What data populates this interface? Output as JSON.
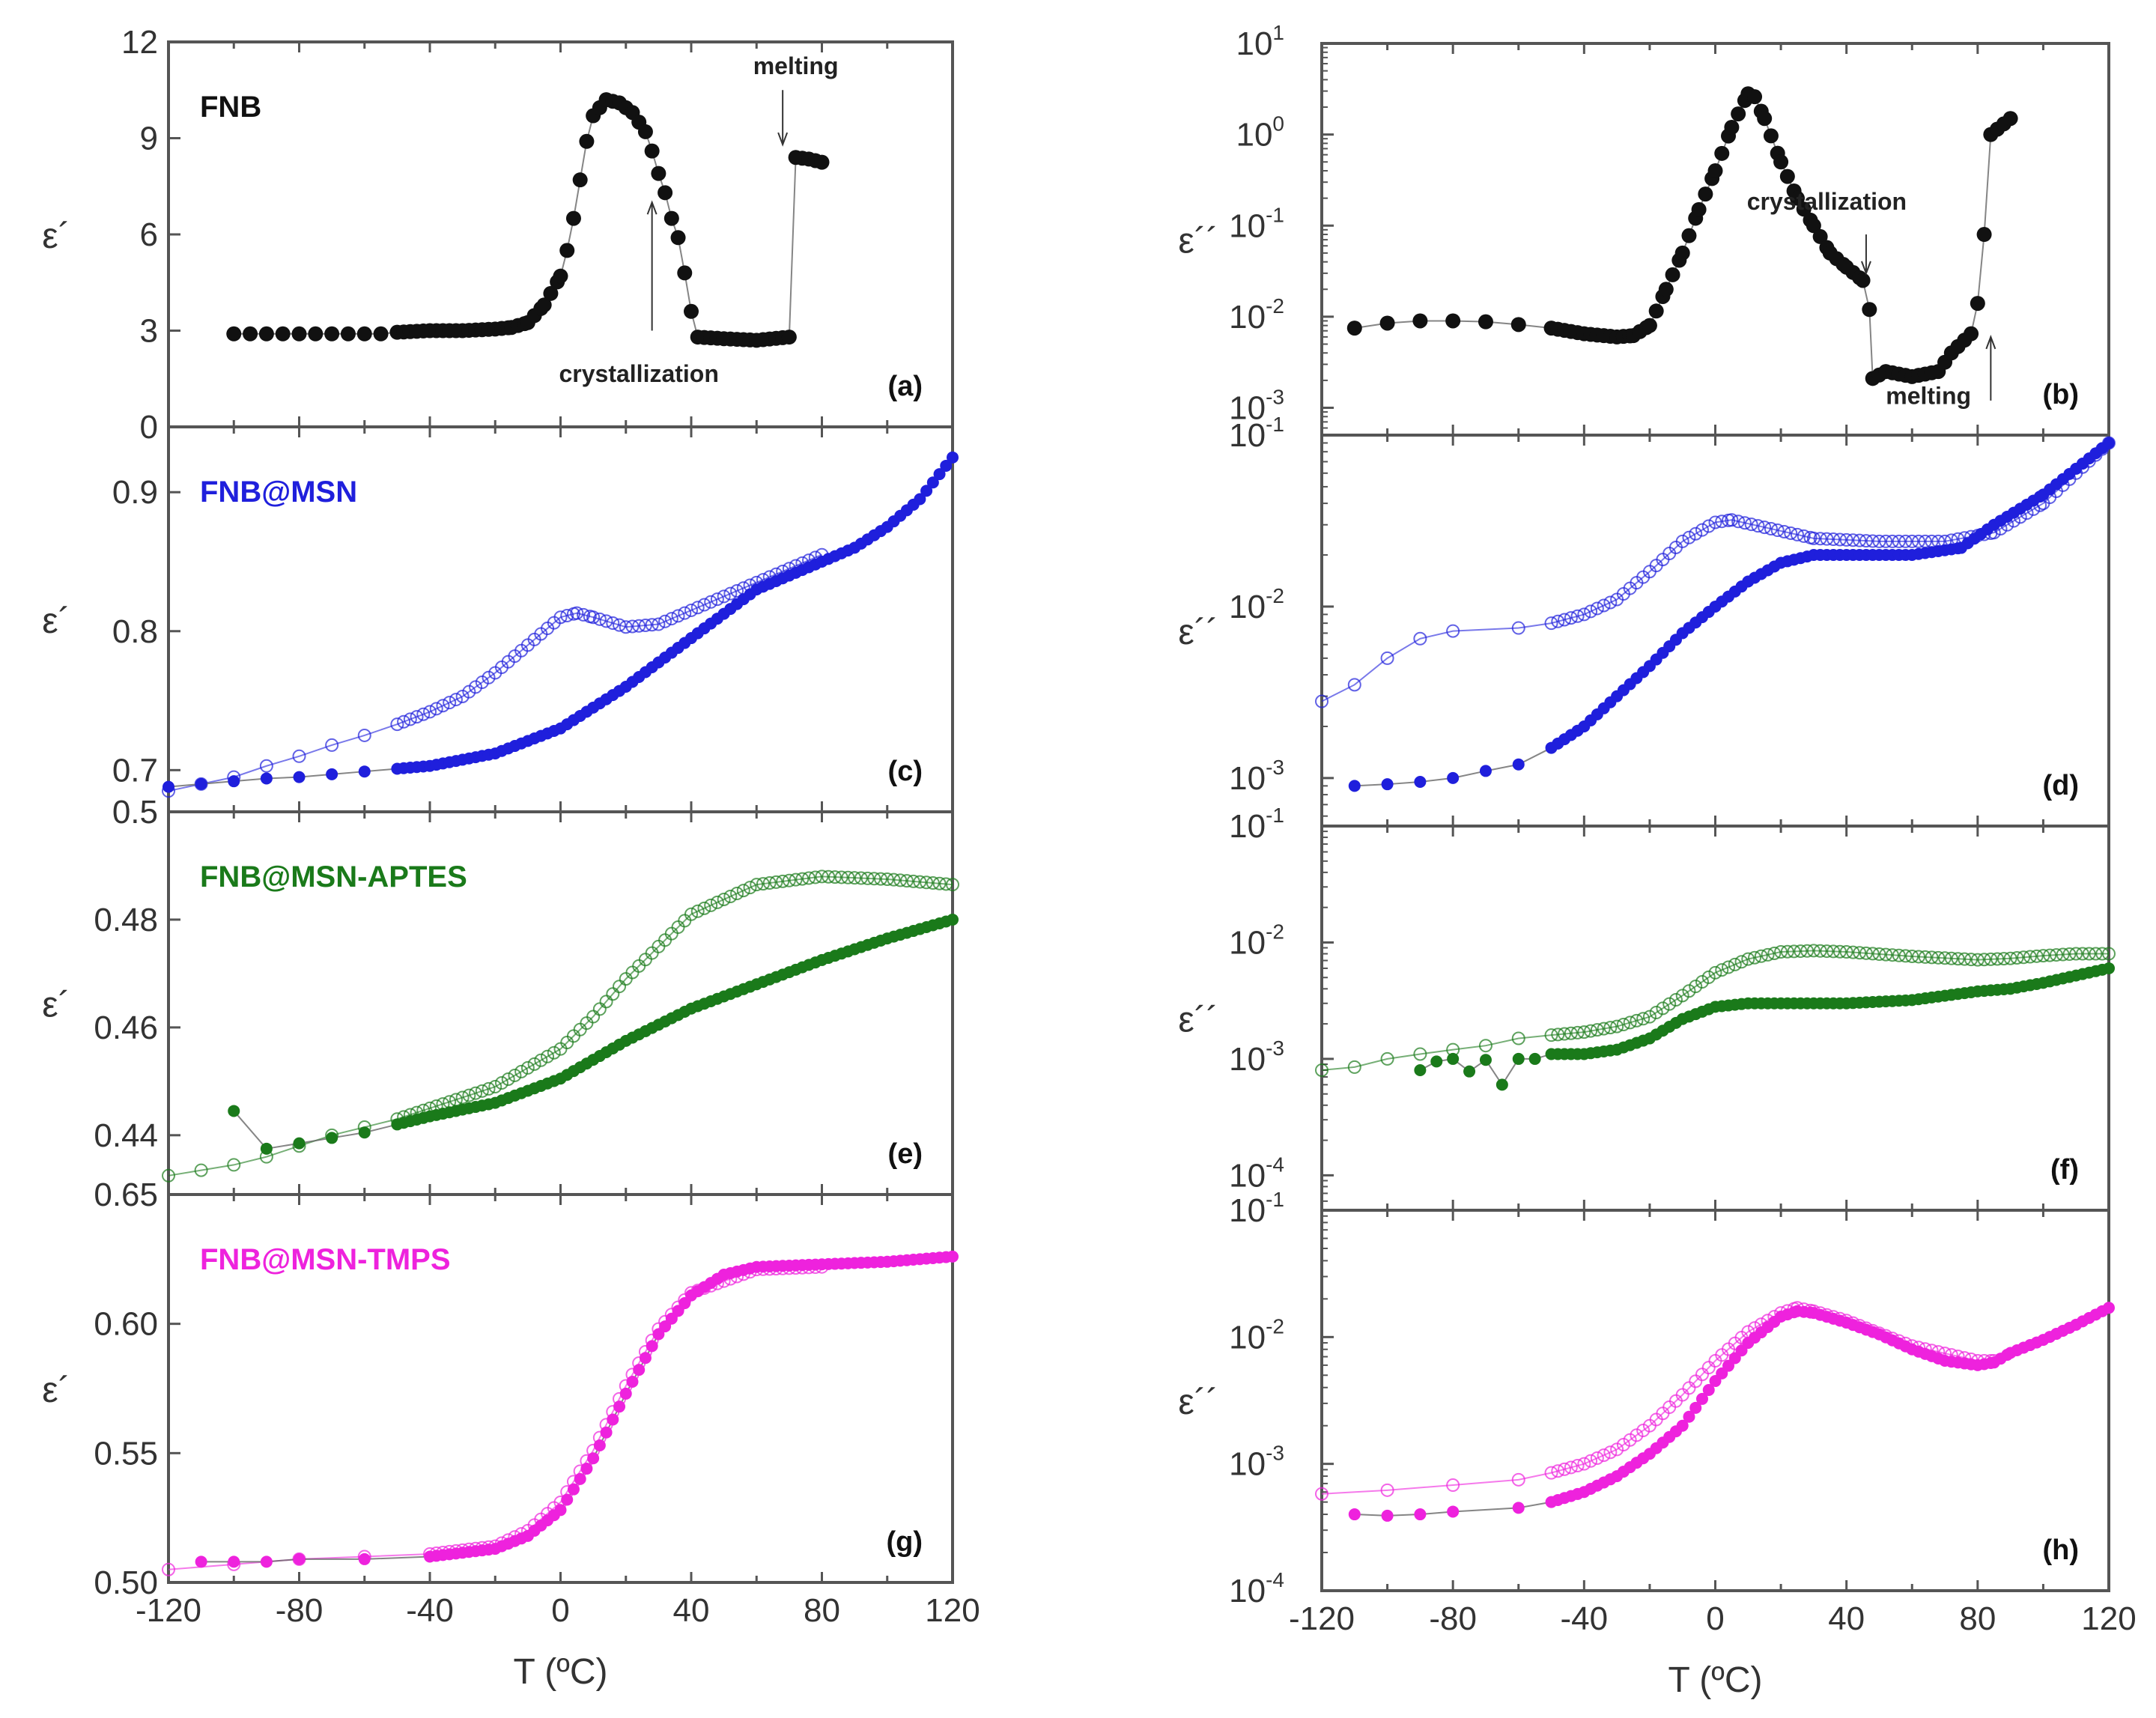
{
  "chart_data": [
    {
      "id": "a",
      "type": "scatter",
      "panel_label": "(a)",
      "sample": "FNB",
      "sample_color": "#111111",
      "ylabel": "ε´",
      "yscale": "linear",
      "ylim": [
        0,
        12
      ],
      "xlim": [
        -120,
        120
      ],
      "yticks": [
        {
          "v": 0,
          "t": "0"
        },
        {
          "v": 3,
          "t": "3"
        },
        {
          "v": 6,
          "t": "6"
        },
        {
          "v": 9,
          "t": "9"
        },
        {
          "v": 12,
          "t": "12"
        }
      ],
      "color": "#111111",
      "annotations": [
        {
          "text": "crystallization",
          "arrow_x": 28,
          "arrow_from": 3.0,
          "arrow_to": 7.0,
          "text_x": 24,
          "text_y": 1.4
        },
        {
          "text": "melting",
          "arrow_x": 68,
          "arrow_from": 10.5,
          "arrow_to": 8.8,
          "text_x": 72,
          "text_y": 11.0
        }
      ],
      "series": [
        {
          "name": "filled",
          "marker": "filled",
          "x": [
            -100,
            -95,
            -90,
            -85,
            -80,
            -75,
            -70,
            -65,
            -60,
            -55,
            -50,
            -40,
            -30,
            -20,
            -15,
            -10,
            -5,
            0,
            2,
            4,
            6,
            8,
            10,
            14,
            18,
            22,
            26,
            28,
            30,
            32,
            34,
            36,
            38,
            40,
            42,
            50,
            60,
            70,
            72,
            76,
            80
          ],
          "y": [
            2.9,
            2.9,
            2.9,
            2.9,
            2.9,
            2.9,
            2.9,
            2.9,
            2.9,
            2.9,
            2.95,
            3.0,
            3.0,
            3.05,
            3.1,
            3.25,
            3.8,
            4.7,
            5.5,
            6.5,
            7.7,
            8.9,
            9.7,
            10.2,
            10.1,
            9.8,
            9.2,
            8.6,
            7.9,
            7.3,
            6.5,
            5.9,
            4.8,
            3.6,
            2.8,
            2.75,
            2.7,
            2.8,
            8.4,
            8.35,
            8.25
          ]
        }
      ]
    },
    {
      "id": "b",
      "type": "scatter",
      "panel_label": "(b)",
      "ylabel": "ε´´",
      "yscale": "log",
      "ylim_log10": [
        -3.3,
        1
      ],
      "xlim": [
        -120,
        120
      ],
      "yticks": [
        {
          "v": -3,
          "t": "10",
          "e": "-3"
        },
        {
          "v": -2,
          "t": "10",
          "e": "-2"
        },
        {
          "v": -1,
          "t": "10",
          "e": "-1"
        },
        {
          "v": 0,
          "t": "10",
          "e": "0"
        },
        {
          "v": 1,
          "t": "10",
          "e": "1"
        }
      ],
      "color": "#111111",
      "annotations": [
        {
          "text": "crystallization",
          "arrow_x": 46,
          "arrow_from": 0.08,
          "arrow_to": 0.03,
          "text_x": 34,
          "text_y": 0.15
        },
        {
          "text": "melting",
          "arrow_x": 84,
          "arrow_from": 0.0012,
          "arrow_to": 0.006,
          "text_x": 65,
          "text_y": 0.0011
        }
      ],
      "series": [
        {
          "name": "filled",
          "marker": "filled",
          "x": [
            -110,
            -100,
            -90,
            -80,
            -70,
            -60,
            -50,
            -40,
            -30,
            -25,
            -20,
            -15,
            -10,
            -5,
            0,
            5,
            10,
            12,
            15,
            20,
            25,
            30,
            35,
            40,
            45,
            47,
            48,
            52,
            60,
            68,
            72,
            78,
            80,
            82,
            84,
            90
          ],
          "y": [
            0.0075,
            0.0085,
            0.009,
            0.009,
            0.0088,
            0.0082,
            0.0075,
            0.0065,
            0.006,
            0.0062,
            0.008,
            0.02,
            0.05,
            0.15,
            0.4,
            1.2,
            2.8,
            2.6,
            1.5,
            0.5,
            0.2,
            0.1,
            0.05,
            0.035,
            0.025,
            0.012,
            0.0021,
            0.0025,
            0.0022,
            0.0025,
            0.004,
            0.0065,
            0.014,
            0.08,
            1.0,
            1.5
          ]
        }
      ]
    },
    {
      "id": "c",
      "type": "scatter",
      "panel_label": "(c)",
      "sample": "FNB@MSN",
      "sample_color": "#1f1fdc",
      "ylabel": "ε´",
      "yscale": "linear",
      "ylim": [
        0.67,
        0.947
      ],
      "xlim": [
        -120,
        120
      ],
      "yticks": [
        {
          "v": 0.7,
          "t": "0.7"
        },
        {
          "v": 0.8,
          "t": "0.8"
        },
        {
          "v": 0.9,
          "t": "0.9"
        }
      ],
      "color": "#1f1fdc",
      "series": [
        {
          "name": "filled",
          "marker": "filled",
          "x": [
            -120,
            -110,
            -100,
            -90,
            -80,
            -70,
            -60,
            -50,
            -40,
            -20,
            0,
            20,
            40,
            60,
            80,
            90,
            100,
            110,
            120
          ],
          "y": [
            0.688,
            0.69,
            0.692,
            0.694,
            0.695,
            0.697,
            0.699,
            0.701,
            0.703,
            0.712,
            0.73,
            0.76,
            0.795,
            0.83,
            0.85,
            0.86,
            0.875,
            0.895,
            0.925
          ]
        },
        {
          "name": "open",
          "marker": "open",
          "x": [
            -120,
            -110,
            -100,
            -90,
            -80,
            -70,
            -60,
            -50,
            -40,
            -30,
            -20,
            -10,
            0,
            5,
            10,
            20,
            30,
            40,
            60,
            80
          ],
          "y": [
            0.685,
            0.69,
            0.695,
            0.703,
            0.71,
            0.718,
            0.725,
            0.733,
            0.742,
            0.753,
            0.77,
            0.79,
            0.81,
            0.813,
            0.81,
            0.803,
            0.805,
            0.815,
            0.835,
            0.855
          ]
        }
      ]
    },
    {
      "id": "d",
      "type": "scatter",
      "panel_label": "(d)",
      "ylabel": "ε´´",
      "yscale": "log",
      "ylim_log10": [
        -3.28,
        -1
      ],
      "xlim": [
        -120,
        120
      ],
      "yticks": [
        {
          "v": -3,
          "t": "10",
          "e": "-3"
        },
        {
          "v": -2,
          "t": "10",
          "e": "-2"
        },
        {
          "v": -1,
          "t": "10",
          "e": "-1"
        }
      ],
      "color": "#1f1fdc",
      "series": [
        {
          "name": "filled",
          "marker": "filled",
          "x": [
            -110,
            -100,
            -90,
            -80,
            -70,
            -60,
            -50,
            -40,
            -30,
            -20,
            -10,
            0,
            10,
            20,
            30,
            40,
            60,
            75,
            85,
            100,
            120
          ],
          "y": [
            0.0009,
            0.00092,
            0.00095,
            0.001,
            0.0011,
            0.0012,
            0.0015,
            0.002,
            0.003,
            0.0045,
            0.007,
            0.01,
            0.014,
            0.018,
            0.02,
            0.02,
            0.02,
            0.022,
            0.03,
            0.045,
            0.09
          ]
        },
        {
          "name": "open",
          "marker": "open",
          "x": [
            -120,
            -110,
            -100,
            -90,
            -80,
            -60,
            -50,
            -40,
            -30,
            -20,
            -10,
            0,
            5,
            15,
            30,
            50,
            70,
            85,
            100,
            120
          ],
          "y": [
            0.0028,
            0.0035,
            0.005,
            0.0065,
            0.0072,
            0.0075,
            0.008,
            0.009,
            0.011,
            0.016,
            0.024,
            0.031,
            0.032,
            0.029,
            0.025,
            0.024,
            0.024,
            0.027,
            0.04,
            0.09
          ]
        }
      ]
    },
    {
      "id": "e",
      "type": "scatter",
      "panel_label": "(e)",
      "sample": "FNB@MSN-APTES",
      "sample_color": "#1a7a1a",
      "ylabel": "ε´",
      "yscale": "linear",
      "ylim": [
        0.429,
        0.5
      ],
      "xlim": [
        -120,
        120
      ],
      "yticks": [
        {
          "v": 0.44,
          "t": "0.44"
        },
        {
          "v": 0.46,
          "t": "0.46"
        },
        {
          "v": 0.48,
          "t": "0.48"
        },
        {
          "v": 0.5,
          "t": "0.5"
        }
      ],
      "color": "#1a7a1a",
      "series": [
        {
          "name": "filled",
          "marker": "filled",
          "x": [
            -100,
            -90,
            -80,
            -70,
            -60,
            -50,
            -40,
            -20,
            0,
            20,
            40,
            60,
            80,
            100,
            120
          ],
          "y": [
            0.4445,
            0.4375,
            0.4385,
            0.4395,
            0.4405,
            0.442,
            0.4435,
            0.446,
            0.4505,
            0.4575,
            0.4635,
            0.468,
            0.4725,
            0.4765,
            0.48
          ]
        },
        {
          "name": "open",
          "marker": "open",
          "x": [
            -120,
            -110,
            -100,
            -90,
            -80,
            -70,
            -60,
            -50,
            -40,
            -20,
            0,
            10,
            20,
            40,
            60,
            80,
            100,
            120
          ],
          "y": [
            0.4325,
            0.4335,
            0.4345,
            0.436,
            0.438,
            0.44,
            0.4415,
            0.443,
            0.445,
            0.449,
            0.456,
            0.462,
            0.469,
            0.481,
            0.4865,
            0.488,
            0.4875,
            0.4865
          ]
        }
      ]
    },
    {
      "id": "f",
      "type": "scatter",
      "panel_label": "(f)",
      "ylabel": "ε´´",
      "yscale": "log",
      "ylim_log10": [
        -4.3,
        -1
      ],
      "xlim": [
        -120,
        120
      ],
      "yticks": [
        {
          "v": -4,
          "t": "10",
          "e": "-4"
        },
        {
          "v": -3,
          "t": "10",
          "e": "-3"
        },
        {
          "v": -2,
          "t": "10",
          "e": "-2"
        },
        {
          "v": -1,
          "t": "10",
          "e": "-1"
        }
      ],
      "color": "#1a7a1a",
      "series": [
        {
          "name": "filled",
          "marker": "filled",
          "x": [
            -90,
            -85,
            -80,
            -75,
            -70,
            -65,
            -60,
            -55,
            -50,
            -40,
            -30,
            -20,
            -10,
            0,
            10,
            20,
            40,
            60,
            80,
            90,
            100,
            110,
            120
          ],
          "y": [
            0.0008,
            0.00095,
            0.001,
            0.00078,
            0.00098,
            0.0006,
            0.001,
            0.001,
            0.0011,
            0.0011,
            0.0012,
            0.0015,
            0.0022,
            0.0028,
            0.003,
            0.003,
            0.003,
            0.0032,
            0.0038,
            0.004,
            0.0045,
            0.0052,
            0.006
          ]
        },
        {
          "name": "open",
          "marker": "open",
          "x": [
            -120,
            -110,
            -100,
            -90,
            -80,
            -70,
            -60,
            -50,
            -40,
            -30,
            -20,
            -10,
            0,
            10,
            20,
            30,
            40,
            60,
            80,
            90,
            100,
            110,
            120
          ],
          "y": [
            0.0008,
            0.00085,
            0.001,
            0.0011,
            0.0012,
            0.0013,
            0.0015,
            0.0016,
            0.0017,
            0.0019,
            0.0023,
            0.0035,
            0.0055,
            0.0072,
            0.0083,
            0.0085,
            0.0083,
            0.0076,
            0.0071,
            0.0073,
            0.0077,
            0.008,
            0.008
          ]
        }
      ]
    },
    {
      "id": "g",
      "type": "scatter",
      "panel_label": "(g)",
      "sample": "FNB@MSN-TMPS",
      "sample_color": "#ee22dd",
      "ylabel": "ε´",
      "yscale": "linear",
      "ylim": [
        0.5,
        0.65
      ],
      "xlim": [
        -120,
        120
      ],
      "yticks": [
        {
          "v": 0.5,
          "t": "0.50"
        },
        {
          "v": 0.55,
          "t": "0.55"
        },
        {
          "v": 0.6,
          "t": "0.60"
        },
        {
          "v": 0.65,
          "t": "0.65"
        }
      ],
      "xticks": [
        "-120",
        "-80",
        "-40",
        "0",
        "40",
        "80",
        "120"
      ],
      "xlabel": "T (ºC)",
      "color": "#ee22dd",
      "series": [
        {
          "name": "filled",
          "marker": "filled",
          "x": [
            -110,
            -100,
            -90,
            -80,
            -60,
            -40,
            -20,
            -10,
            0,
            10,
            20,
            30,
            40,
            50,
            60,
            80,
            100,
            120
          ],
          "y": [
            0.508,
            0.508,
            0.508,
            0.509,
            0.509,
            0.51,
            0.513,
            0.518,
            0.528,
            0.548,
            0.573,
            0.596,
            0.611,
            0.619,
            0.622,
            0.623,
            0.624,
            0.626
          ]
        },
        {
          "name": "open",
          "marker": "open",
          "x": [
            -120,
            -100,
            -80,
            -60,
            -40,
            -20,
            -10,
            0,
            10,
            20,
            30,
            40,
            60,
            80
          ],
          "y": [
            0.505,
            0.507,
            0.509,
            0.51,
            0.511,
            0.514,
            0.52,
            0.531,
            0.551,
            0.576,
            0.598,
            0.612,
            0.621,
            0.622
          ]
        }
      ]
    },
    {
      "id": "h",
      "type": "scatter",
      "panel_label": "(h)",
      "ylabel": "ε´´",
      "yscale": "log",
      "ylim_log10": [
        -4,
        -1
      ],
      "xlim": [
        -120,
        120
      ],
      "yticks": [
        {
          "v": -4,
          "t": "10",
          "e": "-4"
        },
        {
          "v": -3,
          "t": "10",
          "e": "-3"
        },
        {
          "v": -2,
          "t": "10",
          "e": "-2"
        },
        {
          "v": -1,
          "t": "10",
          "e": "-1"
        }
      ],
      "xticks": [
        "-120",
        "-80",
        "-40",
        "0",
        "40",
        "80",
        "120"
      ],
      "xlabel": "T (ºC)",
      "color": "#ee22dd",
      "series": [
        {
          "name": "filled",
          "marker": "filled",
          "x": [
            -110,
            -100,
            -90,
            -80,
            -60,
            -50,
            -40,
            -30,
            -20,
            -10,
            0,
            10,
            20,
            25,
            30,
            40,
            50,
            60,
            70,
            80,
            85,
            90,
            100,
            110,
            120
          ],
          "y": [
            0.0004,
            0.00039,
            0.0004,
            0.00042,
            0.00045,
            0.0005,
            0.0006,
            0.0008,
            0.0012,
            0.002,
            0.0045,
            0.009,
            0.0145,
            0.016,
            0.0155,
            0.013,
            0.0105,
            0.008,
            0.0065,
            0.006,
            0.0063,
            0.0075,
            0.0095,
            0.0125,
            0.017
          ]
        },
        {
          "name": "open",
          "marker": "open",
          "x": [
            -120,
            -100,
            -80,
            -60,
            -50,
            -40,
            -30,
            -20,
            -10,
            0,
            10,
            20,
            25,
            30,
            40,
            60,
            80,
            85
          ],
          "y": [
            0.00058,
            0.00062,
            0.00068,
            0.00075,
            0.00085,
            0.001,
            0.0013,
            0.002,
            0.0035,
            0.0065,
            0.011,
            0.0155,
            0.017,
            0.016,
            0.0135,
            0.0085,
            0.0065,
            0.0065
          ]
        }
      ]
    }
  ]
}
